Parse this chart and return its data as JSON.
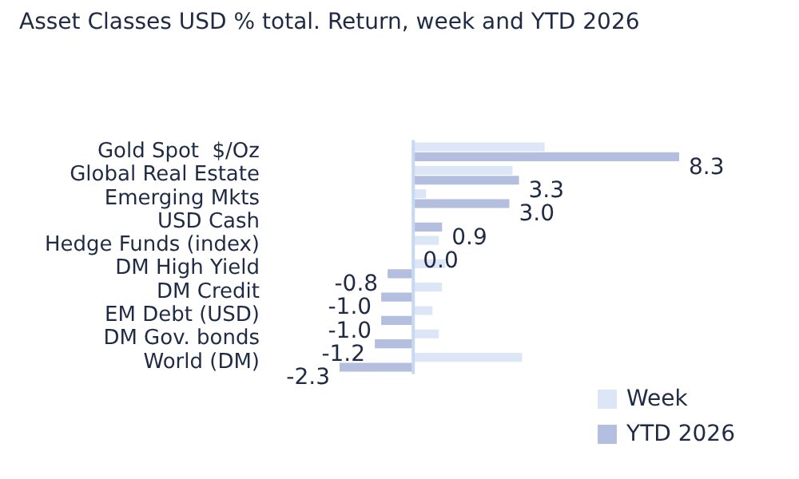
{
  "chart_data": {
    "type": "bar",
    "orientation": "horizontal",
    "title": "Asset Classes USD % total. Return, week and YTD 2026",
    "categories": [
      "Gold Spot  $/Oz",
      "Global Real Estate",
      "Emerging Mkts",
      "USD Cash",
      "Hedge Funds (index)",
      "DM High Yield",
      "DM Credit",
      "EM Debt (USD)",
      "DM Gov. bonds",
      "World (DM)"
    ],
    "series": [
      {
        "name": "Week",
        "color": "#dde6f7",
        "values": [
          4.1,
          3.1,
          0.4,
          0.0,
          0.8,
          1.0,
          0.9,
          0.6,
          0.8,
          3.4
        ]
      },
      {
        "name": "YTD 2026",
        "color": "#b4bedf",
        "values": [
          8.3,
          3.3,
          3.0,
          0.9,
          0.0,
          -0.8,
          -1.0,
          -1.0,
          -1.2,
          -2.3
        ],
        "value_labels": [
          "8.3",
          "3.3",
          "3.0",
          "0.9",
          "0.0",
          "-0.8",
          "-1.0",
          "-1.0",
          "-1.2",
          "-2.3"
        ]
      }
    ],
    "tick_labels": "y",
    "grid": false,
    "legend": "bottom right",
    "ref_lines": [
      {
        "axis": "x",
        "value": 0,
        "color": "#c9d8f2"
      }
    ]
  }
}
